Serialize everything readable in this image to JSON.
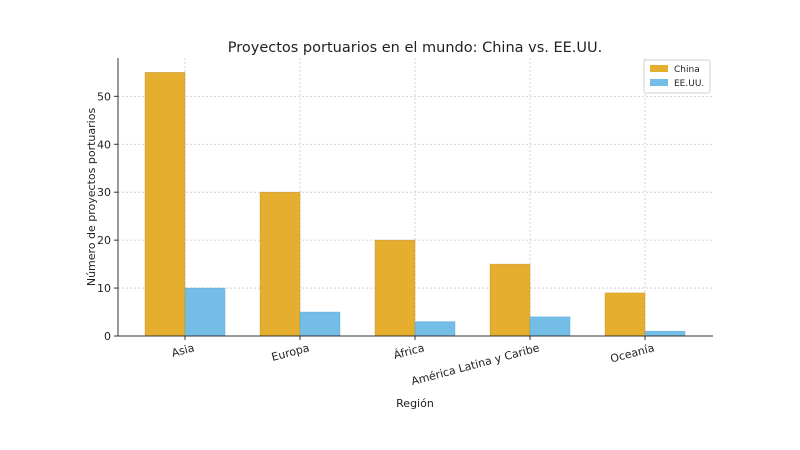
{
  "chart_data": {
    "type": "bar",
    "title": "Proyectos portuarios en el mundo: China vs. EE.UU.",
    "xlabel": "Región",
    "ylabel": "Número de proyectos portuarios",
    "categories": [
      "Asia",
      "Europa",
      "África",
      "América Latina y Caribe",
      "Oceanía"
    ],
    "series": [
      {
        "name": "China",
        "values": [
          55,
          30,
          20,
          15,
          9
        ],
        "color": "#e6ae2e"
      },
      {
        "name": "EE.UU.",
        "values": [
          10,
          5,
          3,
          4,
          1
        ],
        "color": "#74bde6"
      }
    ],
    "ylim": [
      0,
      58
    ],
    "yticks": [
      0,
      10,
      20,
      30,
      40,
      50
    ],
    "grid": true,
    "legend_position": "top-right"
  }
}
